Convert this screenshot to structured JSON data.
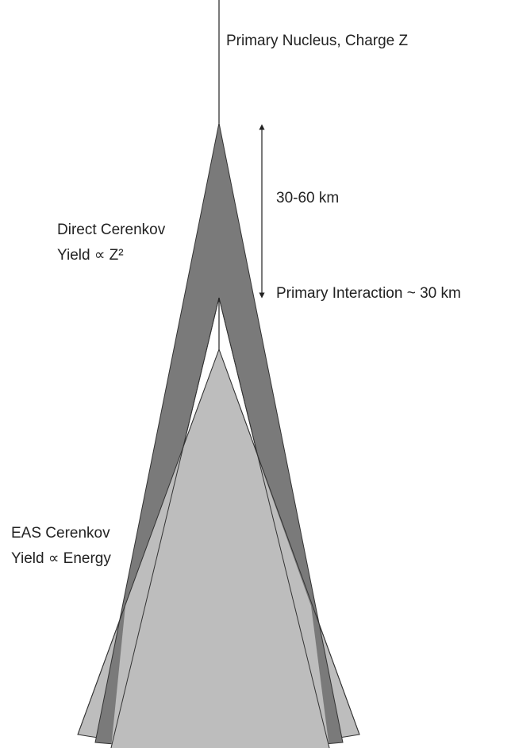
{
  "labels": {
    "primary": "Primary Nucleus, Charge Z",
    "distance": "30-60 km",
    "direct_line1": "Direct Cerenkov",
    "direct_line2": "Yield ∝ Z²",
    "interaction": "Primary Interaction ~ 30 km",
    "eas_line1": "EAS Cerenkov",
    "eas_line2": "Yield ∝ Energy"
  }
}
